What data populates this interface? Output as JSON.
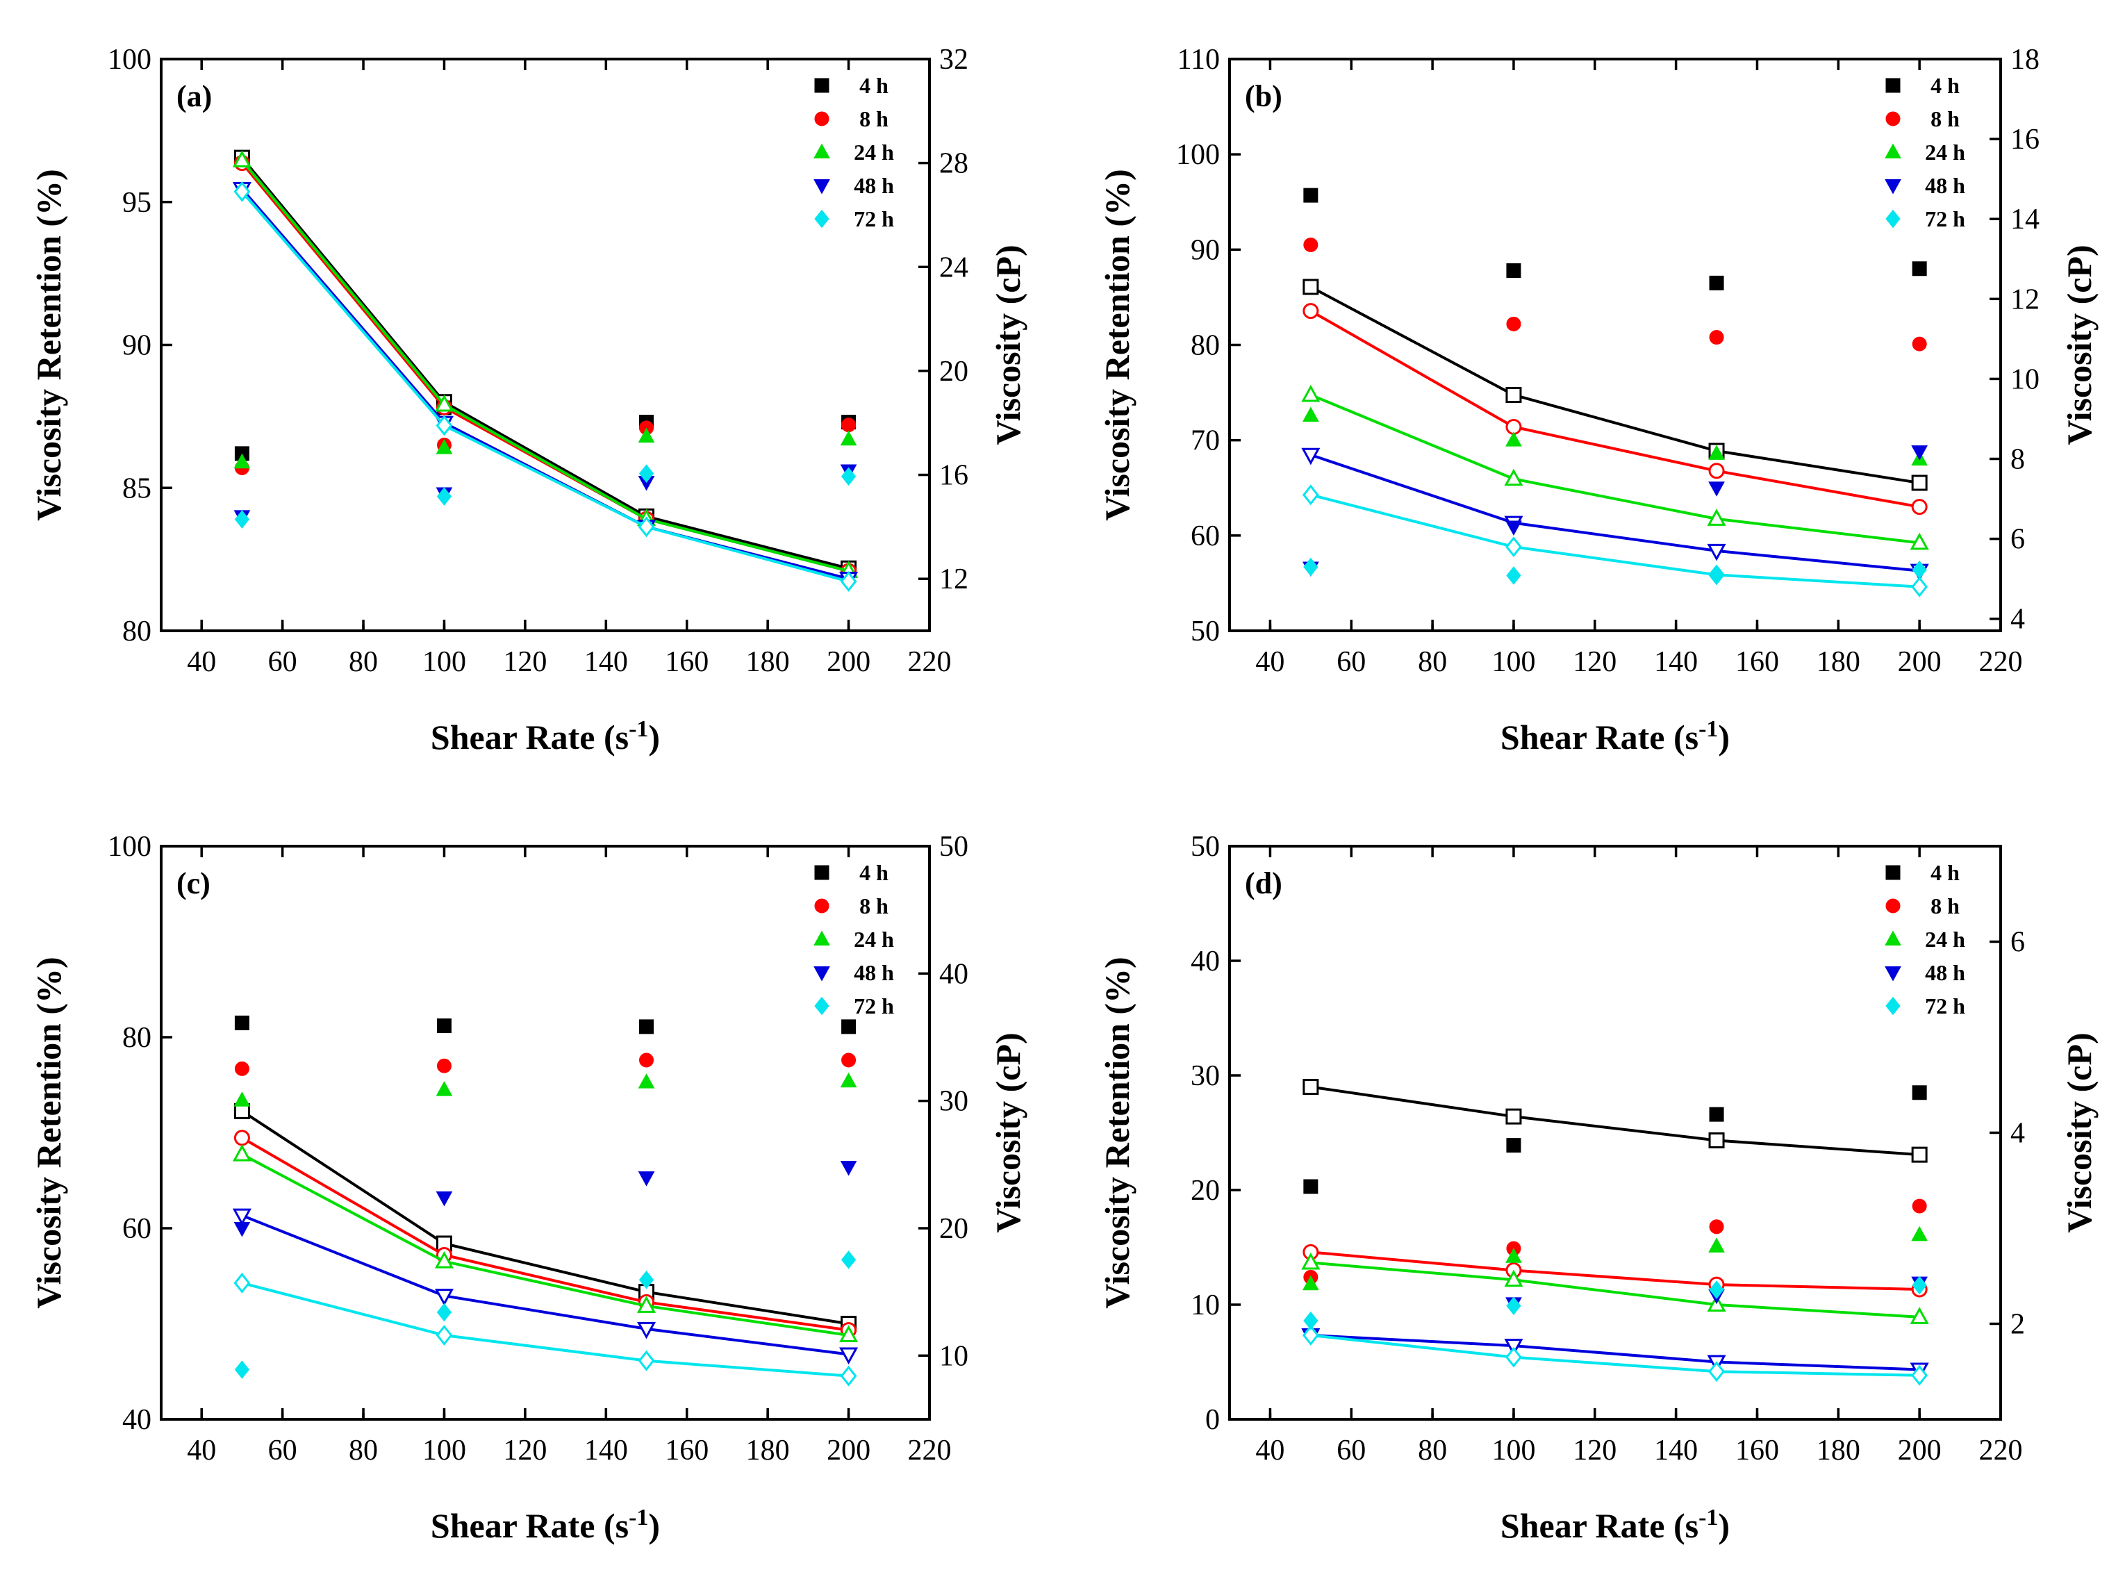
{
  "figure": {
    "xlabel_main": "Shear Rate (s",
    "xlabel_sup": "-1",
    "xlabel_end": ")",
    "ylabel_left": "Viscosity Retention (%)",
    "ylabel_right": "Viscosity (cP)"
  },
  "colors": {
    "4 h": "#000000",
    "8 h": "#ff0000",
    "24 h": "#00dd00",
    "48 h": "#0000dd",
    "72 h": "#00e5ee"
  },
  "chart_data": [
    {
      "type": "scatter",
      "panel": "(a)",
      "xlabel": "Shear Rate (s-1)",
      "ylabel": "Viscosity Retention (%)",
      "y2label": "Viscosity (cP)",
      "xlim": [
        30,
        220
      ],
      "xticks": [
        40,
        60,
        80,
        100,
        120,
        140,
        160,
        180,
        200,
        220
      ],
      "ylim": [
        80,
        100
      ],
      "yticks": [
        80,
        85,
        90,
        95,
        100
      ],
      "y2lim": [
        10,
        32
      ],
      "y2ticks": [
        12,
        16,
        20,
        24,
        28,
        32
      ],
      "x": [
        50,
        100,
        150,
        200
      ],
      "series": [
        {
          "name": "4 h",
          "marker": "square",
          "retention": [
            86.2,
            87.8,
            87.3,
            87.3
          ],
          "viscosity": [
            28.2,
            18.8,
            14.4,
            12.4
          ]
        },
        {
          "name": "8 h",
          "marker": "circle",
          "retention": [
            85.7,
            86.5,
            87.1,
            87.2
          ],
          "viscosity": [
            28.0,
            18.6,
            14.3,
            12.3
          ]
        },
        {
          "name": "24 h",
          "marker": "triangle-up",
          "retention": [
            85.9,
            86.4,
            86.8,
            86.7
          ],
          "viscosity": [
            28.1,
            18.7,
            14.3,
            12.3
          ]
        },
        {
          "name": "48 h",
          "marker": "triangle-down",
          "retention": [
            84.0,
            84.8,
            85.2,
            85.6
          ],
          "viscosity": [
            27.0,
            18.0,
            14.0,
            12.0
          ]
        },
        {
          "name": "72 h",
          "marker": "diamond",
          "retention": [
            83.9,
            84.7,
            85.5,
            85.4
          ],
          "viscosity": [
            26.9,
            17.9,
            14.0,
            11.9
          ]
        }
      ]
    },
    {
      "type": "scatter",
      "panel": "(b)",
      "xlabel": "Shear Rate (s-1)",
      "ylabel": "Viscosity Retention (%)",
      "y2label": "Viscosity (cP)",
      "xlim": [
        30,
        220
      ],
      "xticks": [
        40,
        60,
        80,
        100,
        120,
        140,
        160,
        180,
        200,
        220
      ],
      "ylim": [
        50,
        110
      ],
      "yticks": [
        50,
        60,
        70,
        80,
        90,
        100,
        110
      ],
      "y2lim": [
        3.7,
        18
      ],
      "y2ticks": [
        4,
        6,
        8,
        10,
        12,
        14,
        16,
        18
      ],
      "x": [
        50,
        100,
        150,
        200
      ],
      "series": [
        {
          "name": "4 h",
          "marker": "square",
          "retention": [
            95.7,
            87.8,
            86.5,
            88.0
          ],
          "viscosity": [
            12.3,
            9.6,
            8.2,
            7.4
          ]
        },
        {
          "name": "8 h",
          "marker": "circle",
          "retention": [
            90.5,
            82.2,
            80.8,
            80.1
          ],
          "viscosity": [
            11.7,
            8.8,
            7.7,
            6.8
          ]
        },
        {
          "name": "24 h",
          "marker": "triangle-up",
          "retention": [
            72.6,
            70.0,
            68.6,
            68.0
          ],
          "viscosity": [
            9.6,
            7.5,
            6.5,
            5.9
          ]
        },
        {
          "name": "48 h",
          "marker": "triangle-down",
          "retention": [
            56.6,
            60.9,
            65.0,
            68.8
          ],
          "viscosity": [
            8.1,
            6.4,
            5.7,
            5.2
          ]
        },
        {
          "name": "72 h",
          "marker": "diamond",
          "retention": [
            56.7,
            55.8,
            55.8,
            56.4
          ],
          "viscosity": [
            7.1,
            5.8,
            5.1,
            4.8
          ]
        }
      ]
    },
    {
      "type": "scatter",
      "panel": "(c)",
      "xlabel": "Shear Rate (s-1)",
      "ylabel": "Viscosity Retention (%)",
      "y2label": "Viscosity (cP)",
      "xlim": [
        30,
        220
      ],
      "xticks": [
        40,
        60,
        80,
        100,
        120,
        140,
        160,
        180,
        200,
        220
      ],
      "ylim": [
        40,
        100
      ],
      "yticks": [
        40,
        60,
        80,
        100
      ],
      "y2lim": [
        5,
        50
      ],
      "y2ticks": [
        10,
        20,
        30,
        40,
        50
      ],
      "x": [
        50,
        100,
        150,
        200
      ],
      "series": [
        {
          "name": "4 h",
          "marker": "square",
          "retention": [
            81.5,
            81.2,
            81.1,
            81.1
          ],
          "viscosity": [
            29.2,
            18.8,
            15.0,
            12.5
          ]
        },
        {
          "name": "8 h",
          "marker": "circle",
          "retention": [
            76.7,
            77.0,
            77.6,
            77.6
          ],
          "viscosity": [
            27.1,
            17.9,
            14.2,
            12.0
          ]
        },
        {
          "name": "24 h",
          "marker": "triangle-up",
          "retention": [
            73.4,
            74.5,
            75.3,
            75.4
          ],
          "viscosity": [
            25.8,
            17.4,
            13.9,
            11.6
          ]
        },
        {
          "name": "48 h",
          "marker": "triangle-down",
          "retention": [
            60.0,
            63.2,
            65.3,
            66.4
          ],
          "viscosity": [
            21.0,
            14.7,
            12.1,
            10.1
          ]
        },
        {
          "name": "72 h",
          "marker": "diamond",
          "retention": [
            45.2,
            51.2,
            54.6,
            56.7
          ],
          "viscosity": [
            15.7,
            11.6,
            9.6,
            8.4
          ]
        }
      ]
    },
    {
      "type": "scatter",
      "panel": "(d)",
      "xlabel": "Shear Rate (s-1)",
      "ylabel": "Viscosity Retention (%)",
      "y2label": "Viscosity (cP)",
      "xlim": [
        30,
        220
      ],
      "xticks": [
        40,
        60,
        80,
        100,
        120,
        140,
        160,
        180,
        200,
        220
      ],
      "ylim": [
        0,
        50
      ],
      "yticks": [
        0,
        10,
        20,
        30,
        40,
        50
      ],
      "y2lim": [
        1.0,
        7.0
      ],
      "y2ticks": [
        2,
        4,
        6
      ],
      "x": [
        50,
        100,
        150,
        200
      ],
      "series": [
        {
          "name": "4 h",
          "marker": "square",
          "retention": [
            20.3,
            23.9,
            26.6,
            28.5
          ],
          "viscosity": [
            4.48,
            4.17,
            3.92,
            3.77
          ]
        },
        {
          "name": "8 h",
          "marker": "circle",
          "retention": [
            12.4,
            14.9,
            16.8,
            18.6
          ],
          "viscosity": [
            2.75,
            2.56,
            2.41,
            2.36
          ]
        },
        {
          "name": "24 h",
          "marker": "triangle-up",
          "retention": [
            11.8,
            14.2,
            15.1,
            16.1
          ],
          "viscosity": [
            2.64,
            2.46,
            2.2,
            2.07
          ]
        },
        {
          "name": "48 h",
          "marker": "triangle-down",
          "retention": [
            7.2,
            10.1,
            10.8,
            11.9
          ],
          "viscosity": [
            1.88,
            1.77,
            1.6,
            1.52
          ]
        },
        {
          "name": "72 h",
          "marker": "diamond",
          "retention": [
            8.6,
            9.9,
            11.3,
            11.7
          ],
          "viscosity": [
            1.88,
            1.65,
            1.5,
            1.46
          ]
        }
      ]
    }
  ]
}
